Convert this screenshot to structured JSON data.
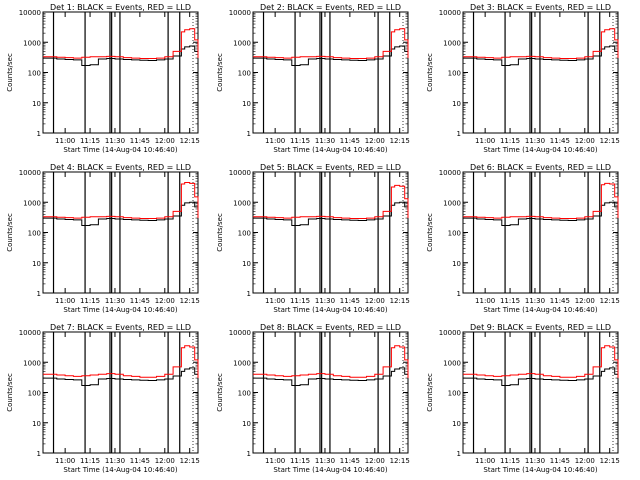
{
  "colors": {
    "events": "#000000",
    "lld": "#ff0000",
    "axes": "#000000",
    "background": "#ffffff"
  },
  "figure": {
    "rows": 3,
    "cols": 3
  },
  "chart_data": [
    {
      "type": "line",
      "title": "Det 1: BLACK = Events, RED = LLD",
      "xlabel": "Start Time (14-Aug-04 10:46:40)",
      "ylabel": "Counts/sec",
      "x": [
        "10:46:40",
        "10:55",
        "11:00",
        "11:05",
        "11:10",
        "11:15",
        "11:20",
        "11:25",
        "11:30",
        "11:35",
        "11:40",
        "11:45",
        "11:50",
        "11:55",
        "12:00",
        "12:05",
        "12:10",
        "12:12",
        "12:15",
        "12:18",
        "12:20"
      ],
      "series": [
        {
          "name": "Events",
          "color": "#000000",
          "values": [
            300,
            280,
            270,
            260,
            170,
            180,
            280,
            290,
            280,
            270,
            260,
            255,
            250,
            260,
            280,
            350,
            600,
            700,
            750,
            500,
            250
          ]
        },
        {
          "name": "LLD",
          "color": "#ff0000",
          "values": [
            330,
            320,
            310,
            300,
            320,
            330,
            330,
            340,
            330,
            310,
            300,
            290,
            290,
            300,
            330,
            500,
            2200,
            2600,
            2800,
            1200,
            300
          ]
        }
      ],
      "xlim": [
        "10:46:40",
        "12:20"
      ],
      "ylim": [
        1,
        10000
      ],
      "yscale": "log",
      "xticks": [
        "11:00",
        "11:15",
        "11:30",
        "11:45",
        "12:00",
        "12:15"
      ],
      "yticks": [
        "1",
        "10",
        "100",
        "1000",
        "10000"
      ],
      "vlines": [
        "10:53",
        "11:12",
        "11:27",
        "11:28",
        "11:33",
        "12:02",
        "12:09"
      ]
    },
    {
      "type": "line",
      "title": "Det 2: BLACK = Events, RED = LLD",
      "xlabel": "Start Time (14-Aug-04 10:46:40)",
      "ylabel": "Counts/sec",
      "x": [
        "10:46:40",
        "10:55",
        "11:00",
        "11:05",
        "11:10",
        "11:15",
        "11:20",
        "11:25",
        "11:30",
        "11:35",
        "11:40",
        "11:45",
        "11:50",
        "11:55",
        "12:00",
        "12:05",
        "12:10",
        "12:12",
        "12:15",
        "12:18",
        "12:20"
      ],
      "series": [
        {
          "name": "Events",
          "color": "#000000",
          "values": [
            300,
            280,
            270,
            260,
            170,
            180,
            280,
            290,
            280,
            270,
            260,
            255,
            250,
            260,
            280,
            350,
            600,
            700,
            750,
            500,
            250
          ]
        },
        {
          "name": "LLD",
          "color": "#ff0000",
          "values": [
            330,
            320,
            310,
            300,
            320,
            330,
            330,
            340,
            330,
            310,
            300,
            290,
            290,
            300,
            330,
            500,
            2200,
            2600,
            2800,
            1200,
            300
          ]
        }
      ],
      "xlim": [
        "10:46:40",
        "12:20"
      ],
      "ylim": [
        1,
        10000
      ],
      "yscale": "log",
      "xticks": [
        "11:00",
        "11:15",
        "11:30",
        "11:45",
        "12:00",
        "12:15"
      ],
      "yticks": [
        "1",
        "10",
        "100",
        "1000",
        "10000"
      ],
      "vlines": [
        "10:53",
        "11:12",
        "11:27",
        "11:28",
        "11:33",
        "12:02",
        "12:09"
      ]
    },
    {
      "type": "line",
      "title": "Det 3: BLACK = Events, RED = LLD",
      "xlabel": "Start Time (14-Aug-04 10:46:40)",
      "ylabel": "Counts/sec",
      "x": [
        "10:46:40",
        "10:55",
        "11:00",
        "11:05",
        "11:10",
        "11:15",
        "11:20",
        "11:25",
        "11:30",
        "11:35",
        "11:40",
        "11:45",
        "11:50",
        "11:55",
        "12:00",
        "12:05",
        "12:10",
        "12:12",
        "12:15",
        "12:18",
        "12:20"
      ],
      "series": [
        {
          "name": "Events",
          "color": "#000000",
          "values": [
            300,
            280,
            270,
            260,
            170,
            180,
            280,
            290,
            280,
            270,
            260,
            255,
            250,
            260,
            280,
            350,
            600,
            700,
            750,
            500,
            250
          ]
        },
        {
          "name": "LLD",
          "color": "#ff0000",
          "values": [
            330,
            320,
            310,
            300,
            320,
            330,
            330,
            340,
            330,
            310,
            300,
            290,
            290,
            300,
            330,
            500,
            2200,
            2600,
            2800,
            1200,
            300
          ]
        }
      ],
      "xlim": [
        "10:46:40",
        "12:20"
      ],
      "ylim": [
        1,
        10000
      ],
      "yscale": "log",
      "xticks": [
        "11:00",
        "11:15",
        "11:30",
        "11:45",
        "12:00",
        "12:15"
      ],
      "yticks": [
        "1",
        "10",
        "100",
        "1000",
        "10000"
      ],
      "vlines": [
        "10:53",
        "11:12",
        "11:27",
        "11:28",
        "11:33",
        "12:02",
        "12:09"
      ]
    },
    {
      "type": "line",
      "title": "Det 4: BLACK = Events, RED = LLD",
      "xlabel": "Start Time (14-Aug-04 10:46:40)",
      "ylabel": "Counts/sec",
      "x": [
        "10:46:40",
        "10:55",
        "11:00",
        "11:05",
        "11:10",
        "11:15",
        "11:20",
        "11:25",
        "11:30",
        "11:35",
        "11:40",
        "11:45",
        "11:50",
        "11:55",
        "12:00",
        "12:05",
        "12:10",
        "12:12",
        "12:15",
        "12:18",
        "12:20"
      ],
      "series": [
        {
          "name": "Events",
          "color": "#000000",
          "values": [
            300,
            280,
            270,
            260,
            170,
            180,
            280,
            290,
            280,
            270,
            260,
            255,
            250,
            260,
            280,
            350,
            800,
            950,
            1000,
            700,
            300
          ]
        },
        {
          "name": "LLD",
          "color": "#ff0000",
          "values": [
            330,
            320,
            310,
            300,
            320,
            330,
            330,
            340,
            330,
            310,
            300,
            290,
            290,
            300,
            330,
            500,
            4000,
            4500,
            4200,
            1500,
            300
          ]
        }
      ],
      "xlim": [
        "10:46:40",
        "12:20"
      ],
      "ylim": [
        1,
        10000
      ],
      "yscale": "log",
      "xticks": [
        "11:00",
        "11:15",
        "11:30",
        "11:45",
        "12:00",
        "12:15"
      ],
      "yticks": [
        "1",
        "10",
        "100",
        "1000",
        "10000"
      ],
      "vlines": [
        "10:53",
        "11:12",
        "11:27",
        "11:28",
        "11:33",
        "12:02",
        "12:09"
      ]
    },
    {
      "type": "line",
      "title": "Det 5: BLACK = Events, RED = LLD",
      "xlabel": "Start Time (14-Aug-04 10:46:40)",
      "ylabel": "Counts/sec",
      "x": [
        "10:46:40",
        "10:55",
        "11:00",
        "11:05",
        "11:10",
        "11:15",
        "11:20",
        "11:25",
        "11:30",
        "11:35",
        "11:40",
        "11:45",
        "11:50",
        "11:55",
        "12:00",
        "12:05",
        "12:10",
        "12:12",
        "12:15",
        "12:18",
        "12:20"
      ],
      "series": [
        {
          "name": "Events",
          "color": "#000000",
          "values": [
            300,
            280,
            270,
            260,
            170,
            180,
            280,
            290,
            280,
            270,
            260,
            255,
            250,
            260,
            280,
            350,
            800,
            950,
            1000,
            700,
            300
          ]
        },
        {
          "name": "LLD",
          "color": "#ff0000",
          "values": [
            330,
            320,
            310,
            300,
            320,
            330,
            330,
            340,
            330,
            310,
            300,
            290,
            290,
            300,
            330,
            500,
            3200,
            3600,
            3400,
            1300,
            300
          ]
        }
      ],
      "xlim": [
        "10:46:40",
        "12:20"
      ],
      "ylim": [
        1,
        10000
      ],
      "yscale": "log",
      "xticks": [
        "11:00",
        "11:15",
        "11:30",
        "11:45",
        "12:00",
        "12:15"
      ],
      "yticks": [
        "1",
        "10",
        "100",
        "1000",
        "10000"
      ],
      "vlines": [
        "10:53",
        "11:12",
        "11:27",
        "11:28",
        "11:33",
        "12:02",
        "12:09"
      ]
    },
    {
      "type": "line",
      "title": "Det 6: BLACK = Events, RED = LLD",
      "xlabel": "Start Time (14-Aug-04 10:46:40)",
      "ylabel": "Counts/sec",
      "x": [
        "10:46:40",
        "10:55",
        "11:00",
        "11:05",
        "11:10",
        "11:15",
        "11:20",
        "11:25",
        "11:30",
        "11:35",
        "11:40",
        "11:45",
        "11:50",
        "11:55",
        "12:00",
        "12:05",
        "12:10",
        "12:12",
        "12:15",
        "12:18",
        "12:20"
      ],
      "series": [
        {
          "name": "Events",
          "color": "#000000",
          "values": [
            300,
            280,
            270,
            260,
            170,
            180,
            280,
            290,
            280,
            270,
            260,
            255,
            250,
            260,
            280,
            350,
            800,
            950,
            1000,
            700,
            300
          ]
        },
        {
          "name": "LLD",
          "color": "#ff0000",
          "values": [
            330,
            320,
            310,
            300,
            320,
            330,
            330,
            340,
            330,
            310,
            300,
            290,
            290,
            300,
            330,
            500,
            3800,
            4200,
            4000,
            1500,
            300
          ]
        }
      ],
      "xlim": [
        "10:46:40",
        "12:20"
      ],
      "ylim": [
        1,
        10000
      ],
      "yscale": "log",
      "xticks": [
        "11:00",
        "11:15",
        "11:30",
        "11:45",
        "12:00",
        "12:15"
      ],
      "yticks": [
        "1",
        "10",
        "100",
        "1000",
        "10000"
      ],
      "vlines": [
        "10:53",
        "11:12",
        "11:27",
        "11:28",
        "11:33",
        "12:02",
        "12:09"
      ]
    },
    {
      "type": "line",
      "title": "Det 7: BLACK = Events, RED = LLD",
      "xlabel": "Start Time (14-Aug-04 10:46:40)",
      "ylabel": "Counts/sec",
      "x": [
        "10:46:40",
        "10:55",
        "11:00",
        "11:05",
        "11:10",
        "11:15",
        "11:20",
        "11:25",
        "11:30",
        "11:35",
        "11:40",
        "11:45",
        "11:50",
        "11:55",
        "12:00",
        "12:05",
        "12:10",
        "12:12",
        "12:15",
        "12:18",
        "12:20"
      ],
      "series": [
        {
          "name": "Events",
          "color": "#000000",
          "values": [
            300,
            280,
            270,
            260,
            170,
            180,
            280,
            290,
            280,
            270,
            260,
            255,
            250,
            260,
            280,
            350,
            500,
            600,
            650,
            400,
            200
          ]
        },
        {
          "name": "LLD",
          "color": "#ff0000",
          "values": [
            400,
            380,
            360,
            340,
            360,
            380,
            400,
            420,
            400,
            360,
            340,
            320,
            320,
            340,
            400,
            700,
            3000,
            3500,
            3200,
            1200,
            300
          ]
        }
      ],
      "xlim": [
        "10:46:40",
        "12:20"
      ],
      "ylim": [
        1,
        10000
      ],
      "yscale": "log",
      "xticks": [
        "11:00",
        "11:15",
        "11:30",
        "11:45",
        "12:00",
        "12:15"
      ],
      "yticks": [
        "1",
        "10",
        "100",
        "1000",
        "10000"
      ],
      "vlines": [
        "10:53",
        "11:12",
        "11:27",
        "11:28",
        "11:33",
        "12:02",
        "12:09"
      ]
    },
    {
      "type": "line",
      "title": "Det 8: BLACK = Events, RED = LLD",
      "xlabel": "Start Time (14-Aug-04 10:46:40)",
      "ylabel": "Counts/sec",
      "x": [
        "10:46:40",
        "10:55",
        "11:00",
        "11:05",
        "11:10",
        "11:15",
        "11:20",
        "11:25",
        "11:30",
        "11:35",
        "11:40",
        "11:45",
        "11:50",
        "11:55",
        "12:00",
        "12:05",
        "12:10",
        "12:12",
        "12:15",
        "12:18",
        "12:20"
      ],
      "series": [
        {
          "name": "Events",
          "color": "#000000",
          "values": [
            300,
            280,
            270,
            260,
            170,
            180,
            280,
            290,
            280,
            270,
            260,
            255,
            250,
            260,
            280,
            350,
            500,
            600,
            650,
            400,
            200
          ]
        },
        {
          "name": "LLD",
          "color": "#ff0000",
          "values": [
            400,
            380,
            360,
            340,
            360,
            380,
            400,
            420,
            400,
            360,
            340,
            320,
            320,
            340,
            400,
            700,
            3000,
            3500,
            3200,
            1200,
            300
          ]
        }
      ],
      "xlim": [
        "10:46:40",
        "12:20"
      ],
      "ylim": [
        1,
        10000
      ],
      "yscale": "log",
      "xticks": [
        "11:00",
        "11:15",
        "11:30",
        "11:45",
        "12:00",
        "12:15"
      ],
      "yticks": [
        "1",
        "10",
        "100",
        "1000",
        "10000"
      ],
      "vlines": [
        "10:53",
        "11:12",
        "11:27",
        "11:28",
        "11:33",
        "12:02",
        "12:09"
      ]
    },
    {
      "type": "line",
      "title": "Det 9: BLACK = Events, RED = LLD",
      "xlabel": "Start Time (14-Aug-04 10:46:40)",
      "ylabel": "Counts/sec",
      "x": [
        "10:46:40",
        "10:55",
        "11:00",
        "11:05",
        "11:10",
        "11:15",
        "11:20",
        "11:25",
        "11:30",
        "11:35",
        "11:40",
        "11:45",
        "11:50",
        "11:55",
        "12:00",
        "12:05",
        "12:10",
        "12:12",
        "12:15",
        "12:18",
        "12:20"
      ],
      "series": [
        {
          "name": "Events",
          "color": "#000000",
          "values": [
            300,
            280,
            270,
            260,
            170,
            180,
            280,
            290,
            280,
            270,
            260,
            255,
            250,
            260,
            280,
            350,
            500,
            600,
            650,
            400,
            200
          ]
        },
        {
          "name": "LLD",
          "color": "#ff0000",
          "values": [
            400,
            380,
            360,
            340,
            360,
            380,
            400,
            420,
            400,
            360,
            340,
            320,
            320,
            340,
            400,
            700,
            3000,
            3500,
            3200,
            1200,
            300
          ]
        }
      ],
      "xlim": [
        "10:46:40",
        "12:20"
      ],
      "ylim": [
        1,
        10000
      ],
      "yscale": "log",
      "xticks": [
        "11:00",
        "11:15",
        "11:30",
        "11:45",
        "12:00",
        "12:15"
      ],
      "yticks": [
        "1",
        "10",
        "100",
        "1000",
        "10000"
      ],
      "vlines": [
        "10:53",
        "11:12",
        "11:27",
        "11:28",
        "11:33",
        "12:02",
        "12:09"
      ]
    }
  ]
}
